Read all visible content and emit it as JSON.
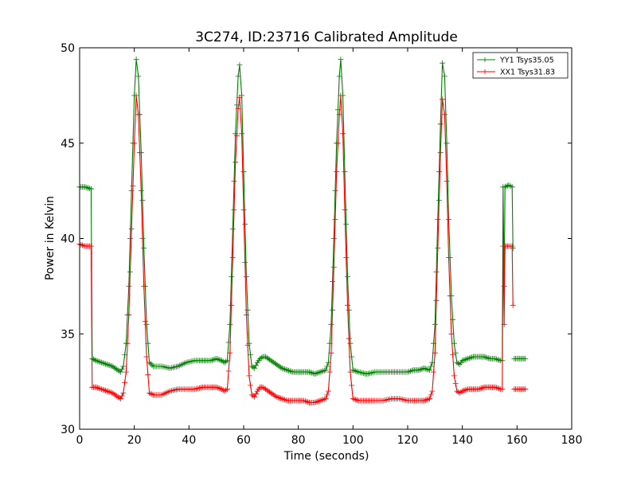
{
  "chart_data": {
    "type": "line",
    "title": "3C274, ID:23716 Calibrated Amplitude",
    "xlabel": "Time (seconds)",
    "ylabel": "Power in Kelvin",
    "xlim": [
      0,
      180
    ],
    "ylim": [
      30,
      50
    ],
    "xticks": [
      0,
      20,
      40,
      60,
      80,
      100,
      120,
      140,
      160,
      180
    ],
    "yticks": [
      30,
      35,
      40,
      45,
      50
    ],
    "xtick_labels": [
      "0",
      "20",
      "40",
      "60",
      "80",
      "100",
      "120",
      "140",
      "160",
      "180"
    ],
    "ytick_labels": [
      "30",
      "35",
      "40",
      "45",
      "50"
    ],
    "grid": false,
    "legend_position": "top-right",
    "marker": "plus",
    "series": [
      {
        "name": "YY1 Tsys35.05",
        "color": "#008000",
        "segments": [
          [
            [
              0,
              42.7
            ],
            [
              2,
              42.7
            ],
            [
              4.2,
              42.6
            ],
            [
              4.6,
              33.7
            ],
            [
              6,
              33.6
            ],
            [
              8,
              33.5
            ],
            [
              10,
              33.4
            ],
            [
              12,
              33.3
            ],
            [
              14,
              33.1
            ],
            [
              15,
              33.0
            ],
            [
              16,
              33.3
            ],
            [
              17,
              34.5
            ],
            [
              18,
              37.5
            ],
            [
              19,
              42.5
            ],
            [
              20,
              47.5
            ],
            [
              20.7,
              49.4
            ],
            [
              21.5,
              48.5
            ],
            [
              22.5,
              44.5
            ],
            [
              23.5,
              39.5
            ],
            [
              24.5,
              35.5
            ],
            [
              25.5,
              33.5
            ],
            [
              27,
              33.3
            ],
            [
              30,
              33.3
            ],
            [
              33,
              33.2
            ],
            [
              36,
              33.3
            ],
            [
              39,
              33.5
            ],
            [
              42,
              33.6
            ],
            [
              45,
              33.6
            ],
            [
              48,
              33.6
            ],
            [
              50,
              33.7
            ],
            [
              52,
              33.6
            ],
            [
              53,
              33.5
            ],
            [
              54,
              33.6
            ],
            [
              55,
              35.5
            ],
            [
              56,
              40.5
            ],
            [
              57,
              45.5
            ],
            [
              58,
              48.5
            ],
            [
              58.5,
              49.1
            ],
            [
              59.3,
              47.5
            ],
            [
              60,
              43.5
            ],
            [
              61,
              38.0
            ],
            [
              62,
              34.5
            ],
            [
              63,
              33.3
            ],
            [
              64,
              33.2
            ],
            [
              65,
              33.5
            ],
            [
              66,
              33.7
            ],
            [
              67,
              33.8
            ],
            [
              68,
              33.8
            ],
            [
              70,
              33.6
            ],
            [
              72,
              33.4
            ],
            [
              74,
              33.2
            ],
            [
              76,
              33.1
            ],
            [
              78,
              33.0
            ],
            [
              80,
              33.0
            ],
            [
              82,
              33.0
            ],
            [
              84,
              33.0
            ],
            [
              86,
              32.9
            ],
            [
              88,
              33.0
            ],
            [
              90,
              33.1
            ],
            [
              91,
              33.5
            ],
            [
              92,
              35.5
            ],
            [
              93,
              40.0
            ],
            [
              94,
              45.0
            ],
            [
              95,
              48.5
            ],
            [
              95.5,
              49.4
            ],
            [
              96.3,
              47.5
            ],
            [
              97,
              43.5
            ],
            [
              98,
              38.0
            ],
            [
              99,
              34.5
            ],
            [
              100,
              33.1
            ],
            [
              102,
              33.0
            ],
            [
              105,
              32.9
            ],
            [
              108,
              33.0
            ],
            [
              111,
              33.0
            ],
            [
              114,
              33.0
            ],
            [
              117,
              33.0
            ],
            [
              120,
              33.0
            ],
            [
              122,
              33.1
            ],
            [
              124,
              33.1
            ],
            [
              126,
              33.2
            ],
            [
              128,
              33.1
            ],
            [
              129,
              33.5
            ],
            [
              130,
              35.5
            ],
            [
              131,
              41.0
            ],
            [
              132,
              46.0
            ],
            [
              132.7,
              49.2
            ],
            [
              133.5,
              48.5
            ],
            [
              134.3,
              45.0
            ],
            [
              135,
              41.0
            ],
            [
              136,
              37.0
            ],
            [
              137,
              34.5
            ],
            [
              138,
              33.5
            ],
            [
              139,
              33.4
            ],
            [
              140,
              33.6
            ],
            [
              142,
              33.7
            ],
            [
              144,
              33.8
            ],
            [
              146,
              33.8
            ],
            [
              148,
              33.8
            ],
            [
              150,
              33.7
            ],
            [
              152,
              33.7
            ],
            [
              154,
              33.6
            ],
            [
              154.6,
              33.6
            ],
            [
              154.9,
              42.7
            ],
            [
              155.3,
              37.5
            ],
            [
              155.6,
              42.7
            ],
            [
              157,
              42.8
            ],
            [
              158.2,
              42.7
            ],
            [
              158.5,
              39.5
            ]
          ],
          [
            [
              159,
              33.7
            ],
            [
              160.5,
              33.7
            ],
            [
              162,
              33.7
            ],
            [
              163,
              33.7
            ]
          ]
        ]
      },
      {
        "name": "XX1 Tsys31.83",
        "color": "#ff0000",
        "segments": [
          [
            [
              0,
              39.7
            ],
            [
              2,
              39.6
            ],
            [
              4.2,
              39.6
            ],
            [
              4.6,
              32.2
            ],
            [
              6,
              32.2
            ],
            [
              8,
              32.1
            ],
            [
              10,
              32.0
            ],
            [
              12,
              31.9
            ],
            [
              14,
              31.7
            ],
            [
              15,
              31.6
            ],
            [
              16,
              31.9
            ],
            [
              17,
              33.0
            ],
            [
              18,
              36.0
            ],
            [
              19,
              40.5
            ],
            [
              20,
              45.0
            ],
            [
              20.7,
              47.5
            ],
            [
              21.5,
              46.5
            ],
            [
              22.5,
              42.5
            ],
            [
              23.5,
              37.5
            ],
            [
              24.5,
              33.8
            ],
            [
              25.5,
              31.9
            ],
            [
              27,
              31.8
            ],
            [
              30,
              31.8
            ],
            [
              33,
              32.0
            ],
            [
              36,
              32.1
            ],
            [
              39,
              32.1
            ],
            [
              42,
              32.1
            ],
            [
              45,
              32.2
            ],
            [
              48,
              32.2
            ],
            [
              50,
              32.2
            ],
            [
              52,
              32.1
            ],
            [
              53,
              32.0
            ],
            [
              54,
              32.1
            ],
            [
              55,
              34.0
            ],
            [
              56,
              39.0
            ],
            [
              57,
              44.0
            ],
            [
              58,
              46.8
            ],
            [
              58.5,
              47.4
            ],
            [
              59.3,
              45.5
            ],
            [
              60,
              41.5
            ],
            [
              61,
              36.0
            ],
            [
              62,
              32.8
            ],
            [
              63,
              31.8
            ],
            [
              64,
              31.7
            ],
            [
              65,
              32.0
            ],
            [
              66,
              32.2
            ],
            [
              67,
              32.2
            ],
            [
              68,
              32.1
            ],
            [
              70,
              31.9
            ],
            [
              72,
              31.7
            ],
            [
              74,
              31.6
            ],
            [
              76,
              31.5
            ],
            [
              78,
              31.5
            ],
            [
              80,
              31.5
            ],
            [
              82,
              31.5
            ],
            [
              84,
              31.4
            ],
            [
              86,
              31.4
            ],
            [
              88,
              31.5
            ],
            [
              90,
              31.6
            ],
            [
              91,
              32.0
            ],
            [
              92,
              34.0
            ],
            [
              93,
              38.5
            ],
            [
              94,
              43.5
            ],
            [
              95,
              46.5
            ],
            [
              95.5,
              47.5
            ],
            [
              96.3,
              45.5
            ],
            [
              97,
              41.5
            ],
            [
              98,
              36.5
            ],
            [
              99,
              33.0
            ],
            [
              100,
              31.6
            ],
            [
              102,
              31.5
            ],
            [
              105,
              31.5
            ],
            [
              108,
              31.5
            ],
            [
              111,
              31.5
            ],
            [
              114,
              31.6
            ],
            [
              117,
              31.6
            ],
            [
              120,
              31.5
            ],
            [
              122,
              31.5
            ],
            [
              124,
              31.5
            ],
            [
              126,
              31.5
            ],
            [
              128,
              31.6
            ],
            [
              129,
              32.0
            ],
            [
              130,
              34.0
            ],
            [
              131,
              39.5
            ],
            [
              132,
              44.5
            ],
            [
              132.7,
              47.3
            ],
            [
              133.5,
              46.5
            ],
            [
              134.3,
              43.0
            ],
            [
              135,
              39.0
            ],
            [
              136,
              35.0
            ],
            [
              137,
              32.8
            ],
            [
              138,
              32.0
            ],
            [
              139,
              31.9
            ],
            [
              140,
              32.0
            ],
            [
              142,
              32.1
            ],
            [
              144,
              32.1
            ],
            [
              146,
              32.1
            ],
            [
              148,
              32.2
            ],
            [
              150,
              32.2
            ],
            [
              152,
              32.2
            ],
            [
              154,
              32.1
            ],
            [
              154.6,
              32.1
            ],
            [
              154.9,
              39.6
            ],
            [
              155.3,
              35.5
            ],
            [
              155.6,
              39.6
            ],
            [
              157,
              39.6
            ],
            [
              158.2,
              39.6
            ],
            [
              158.5,
              36.5
            ]
          ],
          [
            [
              159,
              32.1
            ],
            [
              160.5,
              32.1
            ],
            [
              162,
              32.1
            ],
            [
              163,
              32.1
            ]
          ]
        ]
      }
    ]
  }
}
